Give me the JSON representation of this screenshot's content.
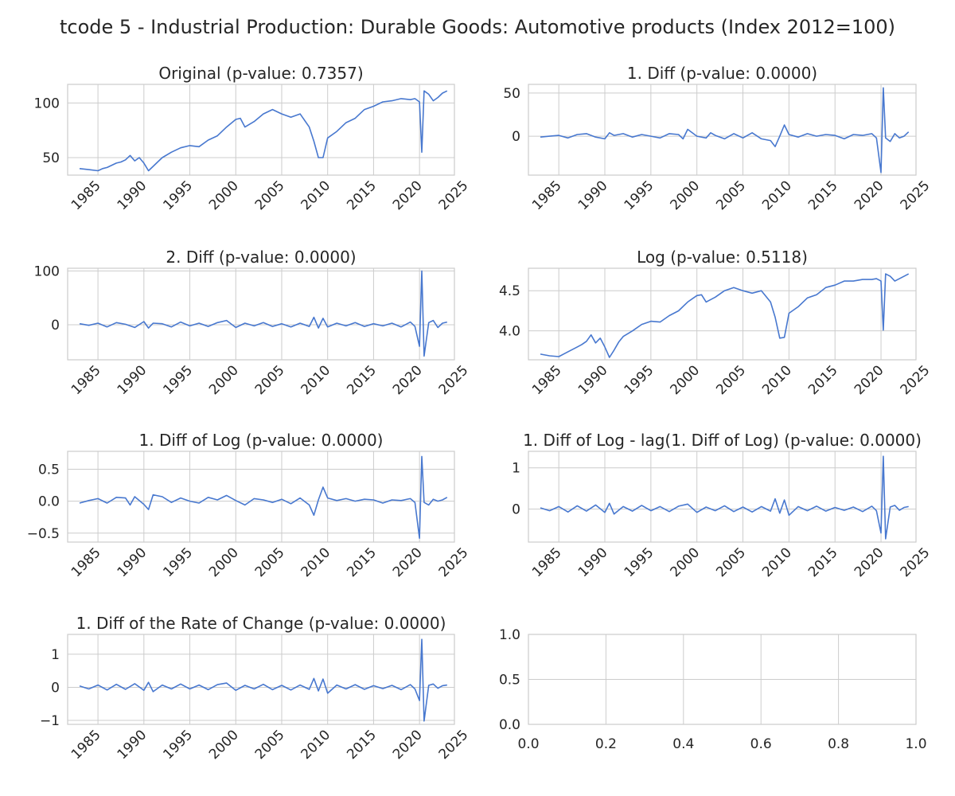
{
  "figure": {
    "title": "tcode 5 - Industrial Production: Durable Goods: Automotive products (Index 2012=100)",
    "line_color": "#4878cf",
    "grid_color": "#cccccc",
    "background": "#ffffff"
  },
  "chart_data": [
    {
      "type": "line",
      "title": "Original (p-value: 0.7357)",
      "xlim": [
        1981.7,
        2023.8
      ],
      "ylim": [
        34,
        117
      ],
      "xticks": [
        1985,
        1990,
        1995,
        2000,
        2005,
        2010,
        2015,
        2020,
        2025
      ],
      "xtick_labels": [
        "1985",
        "1990",
        "1995",
        "2000",
        "2005",
        "2010",
        "2015",
        "2020",
        "2025"
      ],
      "yticks": [
        50,
        100
      ],
      "ytick_labels": [
        "50",
        "100"
      ],
      "grid": true,
      "series": [
        {
          "x": [
            1983.0,
            1984.0,
            1985.0,
            1985.5,
            1986.0,
            1987.0,
            1987.5,
            1988.0,
            1988.5,
            1989.0,
            1989.5,
            1990.0,
            1990.5,
            1991.0,
            1991.5,
            1992.0,
            1993.0,
            1994.0,
            1995.0,
            1996.0,
            1997.0,
            1998.0,
            1999.0,
            2000.0,
            2000.5,
            2001.0,
            2002.0,
            2003.0,
            2004.0,
            2005.0,
            2006.0,
            2007.0,
            2008.0,
            2008.5,
            2009.0,
            2009.5,
            2010.0,
            2011.0,
            2012.0,
            2013.0,
            2014.0,
            2015.0,
            2016.0,
            2017.0,
            2018.0,
            2019.0,
            2019.5,
            2020.0,
            2020.25,
            2020.5,
            2021.0,
            2021.5,
            2022.0,
            2022.5,
            2023.0
          ],
          "y": [
            40,
            39,
            38,
            40,
            41,
            45,
            46,
            48,
            52,
            47,
            50,
            45,
            38,
            42,
            46,
            50,
            55,
            59,
            61,
            60,
            66,
            70,
            78,
            85,
            86,
            78,
            83,
            90,
            94,
            90,
            87,
            90,
            78,
            65,
            50,
            50,
            68,
            74,
            82,
            86,
            94,
            97,
            101,
            102,
            104,
            103,
            104,
            101,
            55,
            111,
            108,
            102,
            105,
            109,
            111
          ]
        }
      ]
    },
    {
      "type": "line",
      "title": "1. Diff (p-value: 0.0000)",
      "xlim": [
        1981.7,
        2023.8
      ],
      "ylim": [
        -45,
        60
      ],
      "xticks": [
        1985,
        1990,
        1995,
        2000,
        2005,
        2010,
        2015,
        2020,
        2025
      ],
      "xtick_labels": [
        "1985",
        "1990",
        "1995",
        "2000",
        "2005",
        "2010",
        "2015",
        "2020",
        "2025"
      ],
      "yticks": [
        0,
        50
      ],
      "ytick_labels": [
        "0",
        "50"
      ],
      "grid": true,
      "series": [
        {
          "x": [
            1983.0,
            1984.0,
            1985.0,
            1986.0,
            1987.0,
            1988.0,
            1989.0,
            1990.0,
            1990.5,
            1991.0,
            1992.0,
            1993.0,
            1994.0,
            1995.0,
            1996.0,
            1997.0,
            1998.0,
            1998.5,
            1999.0,
            2000.0,
            2001.0,
            2001.5,
            2002.0,
            2003.0,
            2004.0,
            2005.0,
            2006.0,
            2007.0,
            2008.0,
            2008.5,
            2009.0,
            2009.5,
            2010.0,
            2011.0,
            2012.0,
            2013.0,
            2014.0,
            2015.0,
            2016.0,
            2017.0,
            2018.0,
            2019.0,
            2019.5,
            2020.0,
            2020.25,
            2020.5,
            2021.0,
            2021.5,
            2022.0,
            2022.5,
            2023.0
          ],
          "y": [
            -1,
            0,
            1,
            -2,
            2,
            3,
            -1,
            -3,
            4,
            1,
            3,
            -1,
            2,
            0,
            -2,
            3,
            2,
            -3,
            8,
            0,
            -2,
            4,
            1,
            -3,
            3,
            -2,
            4,
            -3,
            -5,
            -12,
            0,
            13,
            2,
            -1,
            3,
            0,
            2,
            1,
            -3,
            2,
            1,
            3,
            -2,
            -42,
            56,
            -2,
            -6,
            3,
            -2,
            0,
            5
          ]
        }
      ]
    },
    {
      "type": "line",
      "title": "2. Diff (p-value: 0.0000)",
      "xlim": [
        1981.7,
        2023.8
      ],
      "ylim": [
        -65,
        105
      ],
      "xticks": [
        1985,
        1990,
        1995,
        2000,
        2005,
        2010,
        2015,
        2020,
        2025
      ],
      "xtick_labels": [
        "1985",
        "1990",
        "1995",
        "2000",
        "2005",
        "2010",
        "2015",
        "2020",
        "2025"
      ],
      "yticks": [
        0,
        100
      ],
      "ytick_labels": [
        "0",
        "100"
      ],
      "grid": true,
      "series": [
        {
          "x": [
            1983.0,
            1984.0,
            1985.0,
            1986.0,
            1987.0,
            1988.0,
            1989.0,
            1990.0,
            1990.5,
            1991.0,
            1992.0,
            1993.0,
            1994.0,
            1995.0,
            1996.0,
            1997.0,
            1998.0,
            1999.0,
            2000.0,
            2001.0,
            2002.0,
            2003.0,
            2004.0,
            2005.0,
            2006.0,
            2007.0,
            2008.0,
            2008.5,
            2009.0,
            2009.5,
            2010.0,
            2011.0,
            2012.0,
            2013.0,
            2014.0,
            2015.0,
            2016.0,
            2017.0,
            2018.0,
            2019.0,
            2019.5,
            2020.0,
            2020.25,
            2020.5,
            2021.0,
            2021.5,
            2022.0,
            2022.5,
            2023.0
          ],
          "y": [
            2,
            -1,
            3,
            -4,
            4,
            1,
            -5,
            6,
            -6,
            3,
            2,
            -4,
            5,
            -2,
            3,
            -3,
            4,
            8,
            -5,
            3,
            -2,
            4,
            -3,
            2,
            -4,
            3,
            -3,
            14,
            -6,
            12,
            -4,
            3,
            -2,
            4,
            -3,
            2,
            -2,
            3,
            -4,
            5,
            -3,
            -40,
            100,
            -58,
            4,
            8,
            -5,
            3,
            5
          ]
        }
      ]
    },
    {
      "type": "line",
      "title": "Log (p-value: 0.5118)",
      "xlim": [
        1981.7,
        2023.8
      ],
      "ylim": [
        3.64,
        4.78
      ],
      "xticks": [
        1985,
        1990,
        1995,
        2000,
        2005,
        2010,
        2015,
        2020,
        2025
      ],
      "xtick_labels": [
        "1985",
        "1990",
        "1995",
        "2000",
        "2005",
        "2010",
        "2015",
        "2020",
        "2025"
      ],
      "yticks": [
        4.0,
        4.5
      ],
      "ytick_labels": [
        "4.0",
        "4.5"
      ],
      "grid": true,
      "series": [
        {
          "x": [
            1983.0,
            1984.0,
            1985.0,
            1985.5,
            1986.0,
            1987.0,
            1987.5,
            1988.0,
            1988.5,
            1989.0,
            1989.5,
            1990.0,
            1990.5,
            1991.0,
            1991.5,
            1992.0,
            1993.0,
            1994.0,
            1995.0,
            1996.0,
            1997.0,
            1998.0,
            1999.0,
            2000.0,
            2000.5,
            2001.0,
            2002.0,
            2003.0,
            2004.0,
            2005.0,
            2006.0,
            2007.0,
            2008.0,
            2008.5,
            2009.0,
            2009.5,
            2010.0,
            2011.0,
            2012.0,
            2013.0,
            2014.0,
            2015.0,
            2016.0,
            2017.0,
            2018.0,
            2019.0,
            2019.5,
            2020.0,
            2020.25,
            2020.5,
            2021.0,
            2021.5,
            2022.0,
            2022.5,
            2023.0
          ],
          "y": [
            3.71,
            3.69,
            3.68,
            3.71,
            3.74,
            3.8,
            3.83,
            3.87,
            3.95,
            3.85,
            3.91,
            3.8,
            3.67,
            3.76,
            3.86,
            3.93,
            4.0,
            4.08,
            4.12,
            4.11,
            4.19,
            4.25,
            4.36,
            4.44,
            4.45,
            4.36,
            4.42,
            4.5,
            4.54,
            4.5,
            4.47,
            4.5,
            4.36,
            4.17,
            3.91,
            3.92,
            4.22,
            4.3,
            4.41,
            4.45,
            4.54,
            4.57,
            4.62,
            4.62,
            4.64,
            4.64,
            4.65,
            4.62,
            4.01,
            4.71,
            4.68,
            4.62,
            4.65,
            4.68,
            4.71
          ]
        }
      ]
    },
    {
      "type": "line",
      "title": "1. Diff of Log (p-value: 0.0000)",
      "xlim": [
        1981.7,
        2023.8
      ],
      "ylim": [
        -0.64,
        0.78
      ],
      "xticks": [
        1985,
        1990,
        1995,
        2000,
        2005,
        2010,
        2015,
        2020,
        2025
      ],
      "xtick_labels": [
        "1985",
        "1990",
        "1995",
        "2000",
        "2005",
        "2010",
        "2015",
        "2020",
        "2025"
      ],
      "yticks": [
        -0.5,
        0.0,
        0.5
      ],
      "ytick_labels": [
        "−0.5",
        "0.0",
        "0.5"
      ],
      "grid": true,
      "series": [
        {
          "x": [
            1983.0,
            1984.0,
            1985.0,
            1986.0,
            1987.0,
            1988.0,
            1988.5,
            1989.0,
            1990.0,
            1990.5,
            1991.0,
            1992.0,
            1993.0,
            1994.0,
            1995.0,
            1996.0,
            1997.0,
            1998.0,
            1999.0,
            2000.0,
            2001.0,
            2002.0,
            2003.0,
            2004.0,
            2005.0,
            2006.0,
            2007.0,
            2008.0,
            2008.5,
            2009.0,
            2009.5,
            2010.0,
            2011.0,
            2012.0,
            2013.0,
            2014.0,
            2015.0,
            2016.0,
            2017.0,
            2018.0,
            2019.0,
            2019.5,
            2020.0,
            2020.25,
            2020.5,
            2021.0,
            2021.5,
            2022.0,
            2022.5,
            2023.0
          ],
          "y": [
            -0.03,
            0.01,
            0.04,
            -0.03,
            0.06,
            0.05,
            -0.06,
            0.07,
            -0.05,
            -0.13,
            0.1,
            0.07,
            -0.02,
            0.05,
            0.0,
            -0.03,
            0.06,
            0.02,
            0.09,
            0.01,
            -0.06,
            0.04,
            0.02,
            -0.02,
            0.03,
            -0.04,
            0.05,
            -0.06,
            -0.22,
            0.02,
            0.22,
            0.05,
            0.01,
            0.04,
            0.0,
            0.03,
            0.02,
            -0.03,
            0.02,
            0.01,
            0.04,
            -0.02,
            -0.58,
            0.7,
            -0.02,
            -0.06,
            0.03,
            0.0,
            0.02,
            0.06
          ]
        }
      ]
    },
    {
      "type": "line",
      "title": "1. Diff of Log - lag(1. Diff of Log) (p-value: 0.0000)",
      "xlim": [
        1981.7,
        2023.8
      ],
      "ylim": [
        -0.8,
        1.4
      ],
      "xticks": [
        1985,
        1990,
        1995,
        2000,
        2005,
        2010,
        2015,
        2020,
        2025
      ],
      "xtick_labels": [
        "1985",
        "1990",
        "1995",
        "2000",
        "2005",
        "2010",
        "2015",
        "2020",
        "2025"
      ],
      "yticks": [
        0,
        1
      ],
      "ytick_labels": [
        "0",
        "1"
      ],
      "grid": true,
      "series": [
        {
          "x": [
            1983.0,
            1984.0,
            1985.0,
            1986.0,
            1987.0,
            1988.0,
            1989.0,
            1990.0,
            1990.5,
            1991.0,
            1992.0,
            1993.0,
            1994.0,
            1995.0,
            1996.0,
            1997.0,
            1998.0,
            1999.0,
            2000.0,
            2001.0,
            2002.0,
            2003.0,
            2004.0,
            2005.0,
            2006.0,
            2007.0,
            2008.0,
            2008.5,
            2009.0,
            2009.5,
            2010.0,
            2011.0,
            2012.0,
            2013.0,
            2014.0,
            2015.0,
            2016.0,
            2017.0,
            2018.0,
            2019.0,
            2019.5,
            2020.0,
            2020.25,
            2020.5,
            2021.0,
            2021.5,
            2022.0,
            2022.5,
            2023.0
          ],
          "y": [
            0.03,
            -0.04,
            0.06,
            -0.07,
            0.08,
            -0.05,
            0.1,
            -0.08,
            0.14,
            -0.12,
            0.06,
            -0.05,
            0.09,
            -0.04,
            0.06,
            -0.06,
            0.07,
            0.12,
            -0.08,
            0.05,
            -0.04,
            0.08,
            -0.06,
            0.05,
            -0.07,
            0.06,
            -0.05,
            0.25,
            -0.1,
            0.22,
            -0.15,
            0.06,
            -0.04,
            0.07,
            -0.05,
            0.04,
            -0.03,
            0.05,
            -0.06,
            0.07,
            -0.04,
            -0.58,
            1.28,
            -0.72,
            0.05,
            0.09,
            -0.03,
            0.04,
            0.06
          ]
        }
      ]
    },
    {
      "type": "line",
      "title": "1. Diff of the Rate of Change (p-value: 0.0000)",
      "xlim": [
        1981.7,
        2023.8
      ],
      "ylim": [
        -1.12,
        1.6
      ],
      "xticks": [
        1985,
        1990,
        1995,
        2000,
        2005,
        2010,
        2015,
        2020,
        2025
      ],
      "xtick_labels": [
        "1985",
        "1990",
        "1995",
        "2000",
        "2005",
        "2010",
        "2015",
        "2020",
        "2025"
      ],
      "yticks": [
        -1,
        0,
        1
      ],
      "ytick_labels": [
        "−1",
        "0",
        "1"
      ],
      "grid": true,
      "series": [
        {
          "x": [
            1983.0,
            1984.0,
            1985.0,
            1986.0,
            1987.0,
            1988.0,
            1989.0,
            1990.0,
            1990.5,
            1991.0,
            1992.0,
            1993.0,
            1994.0,
            1995.0,
            1996.0,
            1997.0,
            1998.0,
            1999.0,
            2000.0,
            2001.0,
            2002.0,
            2003.0,
            2004.0,
            2005.0,
            2006.0,
            2007.0,
            2008.0,
            2008.5,
            2009.0,
            2009.5,
            2010.0,
            2011.0,
            2012.0,
            2013.0,
            2014.0,
            2015.0,
            2016.0,
            2017.0,
            2018.0,
            2019.0,
            2019.5,
            2020.0,
            2020.25,
            2020.5,
            2021.0,
            2021.5,
            2022.0,
            2022.5,
            2023.0
          ],
          "y": [
            0.04,
            -0.05,
            0.07,
            -0.08,
            0.09,
            -0.06,
            0.11,
            -0.09,
            0.15,
            -0.13,
            0.07,
            -0.05,
            0.1,
            -0.05,
            0.07,
            -0.07,
            0.08,
            0.13,
            -0.09,
            0.06,
            -0.05,
            0.09,
            -0.07,
            0.06,
            -0.08,
            0.07,
            -0.06,
            0.27,
            -0.11,
            0.25,
            -0.18,
            0.07,
            -0.05,
            0.08,
            -0.06,
            0.05,
            -0.04,
            0.06,
            -0.07,
            0.08,
            -0.05,
            -0.4,
            1.45,
            -1.02,
            0.06,
            0.1,
            -0.03,
            0.05,
            0.07
          ]
        }
      ]
    },
    {
      "type": "line",
      "title": "",
      "xlim": [
        0.0,
        1.0
      ],
      "ylim": [
        0.0,
        1.0
      ],
      "xticks": [
        0.0,
        0.2,
        0.4,
        0.6,
        0.8,
        1.0
      ],
      "xtick_labels": [
        "0.0",
        "0.2",
        "0.4",
        "0.6",
        "0.8",
        "1.0"
      ],
      "yticks": [
        0.0,
        0.5,
        1.0
      ],
      "ytick_labels": [
        "0.0",
        "0.5",
        "1.0"
      ],
      "grid": true,
      "series": []
    }
  ]
}
